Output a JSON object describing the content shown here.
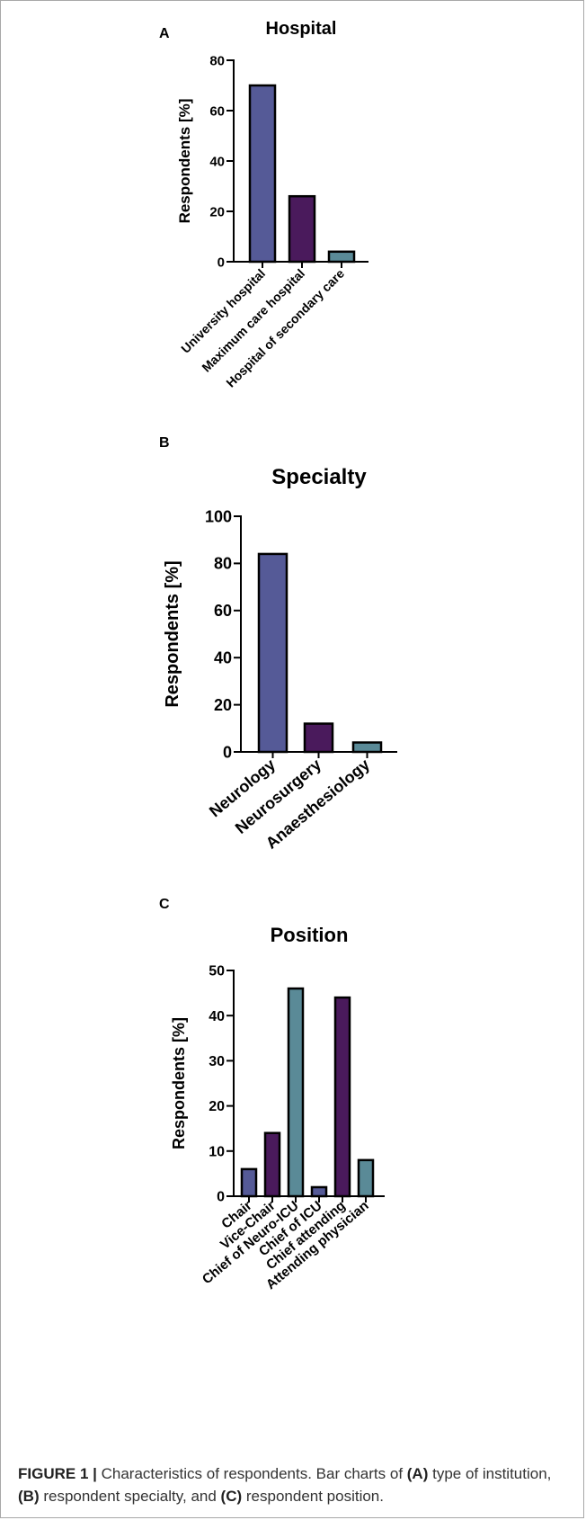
{
  "colors": {
    "blue": "#555a97",
    "purple": "#4a1a5c",
    "teal": "#5a8a97"
  },
  "chart_data": [
    {
      "panel": "A",
      "type": "bar",
      "title": "Hospital",
      "xlabel": "",
      "ylabel": "Respondents [%]",
      "ylim": [
        0,
        80
      ],
      "yticks": [
        0,
        20,
        40,
        60,
        80
      ],
      "categories": [
        "University hospital",
        "Maximum care hospital",
        "Hospital of secondary care"
      ],
      "values": [
        70,
        26,
        4
      ],
      "colors": [
        "blue",
        "purple",
        "teal"
      ],
      "grid": false,
      "legend": "none"
    },
    {
      "panel": "B",
      "type": "bar",
      "title": "Specialty",
      "xlabel": "",
      "ylabel": "Respondents [%]",
      "ylim": [
        0,
        100
      ],
      "yticks": [
        0,
        20,
        40,
        60,
        80,
        100
      ],
      "categories": [
        "Neurology",
        "Neurosurgery",
        "Anaesthesiology"
      ],
      "values": [
        84,
        12,
        4
      ],
      "colors": [
        "blue",
        "purple",
        "teal"
      ],
      "grid": false,
      "legend": "none"
    },
    {
      "panel": "C",
      "type": "bar",
      "title": "Position",
      "xlabel": "",
      "ylabel": "Respondents [%]",
      "ylim": [
        0,
        50
      ],
      "yticks": [
        0,
        10,
        20,
        30,
        40,
        50
      ],
      "categories": [
        "Chair",
        "Vice-Chair",
        "Chief of Neuro-ICU",
        "Chief of ICU",
        "Chief attending",
        "Attending physician"
      ],
      "values": [
        6,
        14,
        46,
        2,
        44,
        8
      ],
      "colors": [
        "blue",
        "purple",
        "teal",
        "blue",
        "purple",
        "teal"
      ],
      "grid": false,
      "legend": "none"
    }
  ],
  "caption": {
    "label": "FIGURE 1 |",
    "t1": " Characteristics of respondents. Bar charts of ",
    "a": "(A)",
    "t2": " type of institution, ",
    "b": "(B)",
    "t3": " respondent specialty, and ",
    "c": "(C)",
    "t4": " respondent position."
  }
}
